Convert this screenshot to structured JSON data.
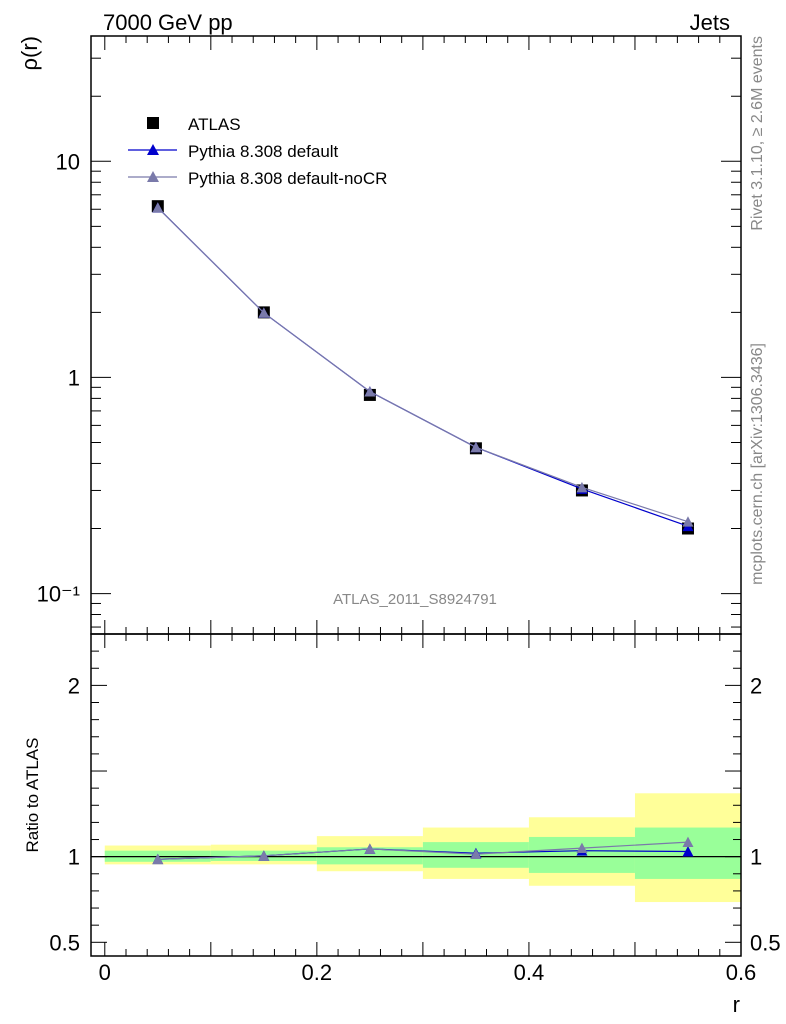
{
  "header": {
    "left": "7000 GeV pp",
    "right": "Jets"
  },
  "side_labels": {
    "rivet": "Rivet 3.1.10, ≥ 2.6M events",
    "mcplots": "mcplots.cern.ch [arXiv:1306.3436]"
  },
  "watermark": "ATLAS_2011_S8924791",
  "chart_data": [
    {
      "type": "scatter",
      "panel": "main",
      "ylabel": "ρ(r)",
      "yscale": "log",
      "ylim": [
        0.065,
        38
      ],
      "xlim": [
        -0.013,
        0.6
      ],
      "ytick_labels": [
        "10⁻¹",
        "1",
        "10"
      ],
      "legend_position": "top-left",
      "x": [
        0.05,
        0.15,
        0.25,
        0.35,
        0.45,
        0.55
      ],
      "series": [
        {
          "name": "ATLAS",
          "color": "#000000",
          "marker": "square",
          "values": [
            6.2,
            2.0,
            0.83,
            0.47,
            0.3,
            0.2
          ]
        },
        {
          "name": "Pythia 8.308 default",
          "color": "#0000cc",
          "marker": "triangle",
          "values": [
            6.1,
            1.99,
            0.86,
            0.475,
            0.305,
            0.205
          ]
        },
        {
          "name": "Pythia 8.308 default-noCR",
          "color": "#7a7aaa",
          "marker": "triangle",
          "values": [
            6.1,
            1.99,
            0.86,
            0.475,
            0.31,
            0.215
          ]
        }
      ]
    },
    {
      "type": "line",
      "panel": "ratio",
      "ylabel": "Ratio to ATLAS",
      "xlabel": "r",
      "ylim": [
        0.42,
        2.3
      ],
      "xlim": [
        -0.013,
        0.6
      ],
      "yticks": [
        0.5,
        1,
        2
      ],
      "ytick_labels": [
        "0.5",
        "1",
        "2"
      ],
      "xticks": [
        0,
        0.2,
        0.4,
        0.6
      ],
      "xtick_labels": [
        "0",
        "0.2",
        "0.4",
        "0.6"
      ],
      "x": [
        0.05,
        0.15,
        0.25,
        0.35,
        0.45,
        0.55
      ],
      "bands": {
        "bin_edges": [
          0.0,
          0.1,
          0.2,
          0.3,
          0.4,
          0.5,
          0.6
        ],
        "stat": {
          "color": "#99ff99",
          "lo": [
            0.97,
            0.975,
            0.955,
            0.935,
            0.905,
            0.87
          ],
          "hi": [
            1.035,
            1.035,
            1.055,
            1.085,
            1.115,
            1.17
          ]
        },
        "total": {
          "color": "#ffff99",
          "lo": [
            0.955,
            0.955,
            0.915,
            0.87,
            0.83,
            0.735
          ],
          "hi": [
            1.065,
            1.07,
            1.12,
            1.17,
            1.23,
            1.37
          ]
        }
      },
      "series": [
        {
          "name": "Pythia 8.308 default",
          "color": "#0000cc",
          "values": [
            0.985,
            1.005,
            1.045,
            1.02,
            1.035,
            1.03
          ]
        },
        {
          "name": "Pythia 8.308 default-noCR",
          "color": "#7a7aaa",
          "values": [
            0.985,
            1.005,
            1.045,
            1.015,
            1.05,
            1.085
          ]
        }
      ]
    }
  ]
}
